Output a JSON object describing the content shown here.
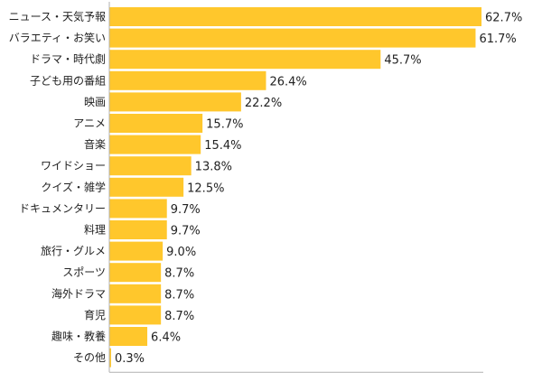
{
  "chart_data": {
    "type": "bar",
    "orientation": "horizontal",
    "categories": [
      "ニュース・天気予報",
      "バラエティ・お笑い",
      "ドラマ・時代劇",
      "子ども用の番組",
      "映画",
      "アニメ",
      "音楽",
      "ワイドショー",
      "クイズ・雑学",
      "ドキュメンタリー",
      "料理",
      "旅行・グルメ",
      "スポーツ",
      "海外ドラマ",
      "育児",
      "趣味・教養",
      "その他"
    ],
    "values": [
      62.7,
      61.7,
      45.7,
      26.4,
      22.2,
      15.7,
      15.4,
      13.8,
      12.5,
      9.7,
      9.7,
      9.0,
      8.7,
      8.7,
      8.7,
      6.4,
      0.3
    ],
    "value_labels": [
      "62.7%",
      "61.7%",
      "45.7%",
      "26.4%",
      "22.2%",
      "15.7%",
      "15.4%",
      "13.8%",
      "12.5%",
      "9.7%",
      "9.7%",
      "9.0%",
      "8.7%",
      "8.7%",
      "8.7%",
      "6.4%",
      "0.3%"
    ],
    "unit": "%",
    "xlim": [
      0,
      63
    ],
    "grid": false,
    "colors": {
      "bar": "#FFC72C",
      "axis": "#b0b0b0",
      "text": "#222222"
    }
  }
}
